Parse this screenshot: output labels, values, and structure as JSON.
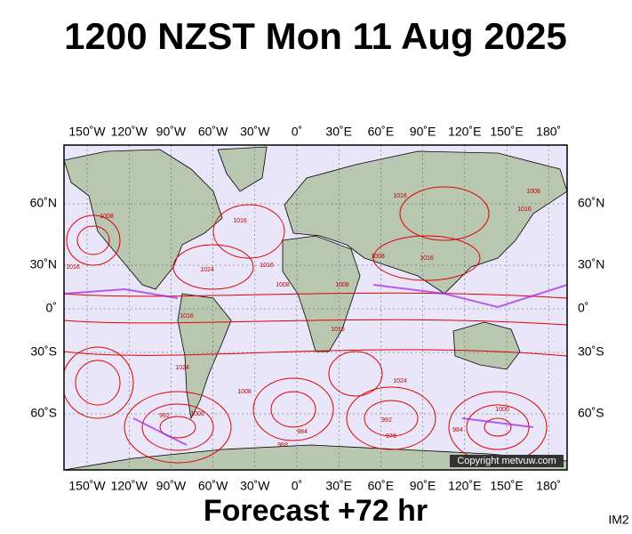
{
  "title": "1200 NZST Mon 11 Aug 2025",
  "footer": "Forecast +72 hr",
  "image_id": "IM2",
  "copyright": "Copyright metvuw.com",
  "lon_labels": [
    "150˚W",
    "120˚W",
    "90˚W",
    "60˚W",
    "30˚W",
    "0˚",
    "30˚E",
    "60˚E",
    "90˚E",
    "120˚E",
    "150˚E",
    "180˚"
  ],
  "lat_labels": [
    "60˚N",
    "30˚N",
    "0˚",
    "30˚S",
    "60˚S"
  ],
  "contour_labels": [
    "1008",
    "1016",
    "1024",
    "1016",
    "1008",
    "1016",
    "1008",
    "1016",
    "1016",
    "1008",
    "1016",
    "1016",
    "1008",
    "1016",
    "1024",
    "1000",
    "992",
    "1000",
    "984",
    "968",
    "976",
    "992",
    "984",
    "1024",
    "1008"
  ]
}
